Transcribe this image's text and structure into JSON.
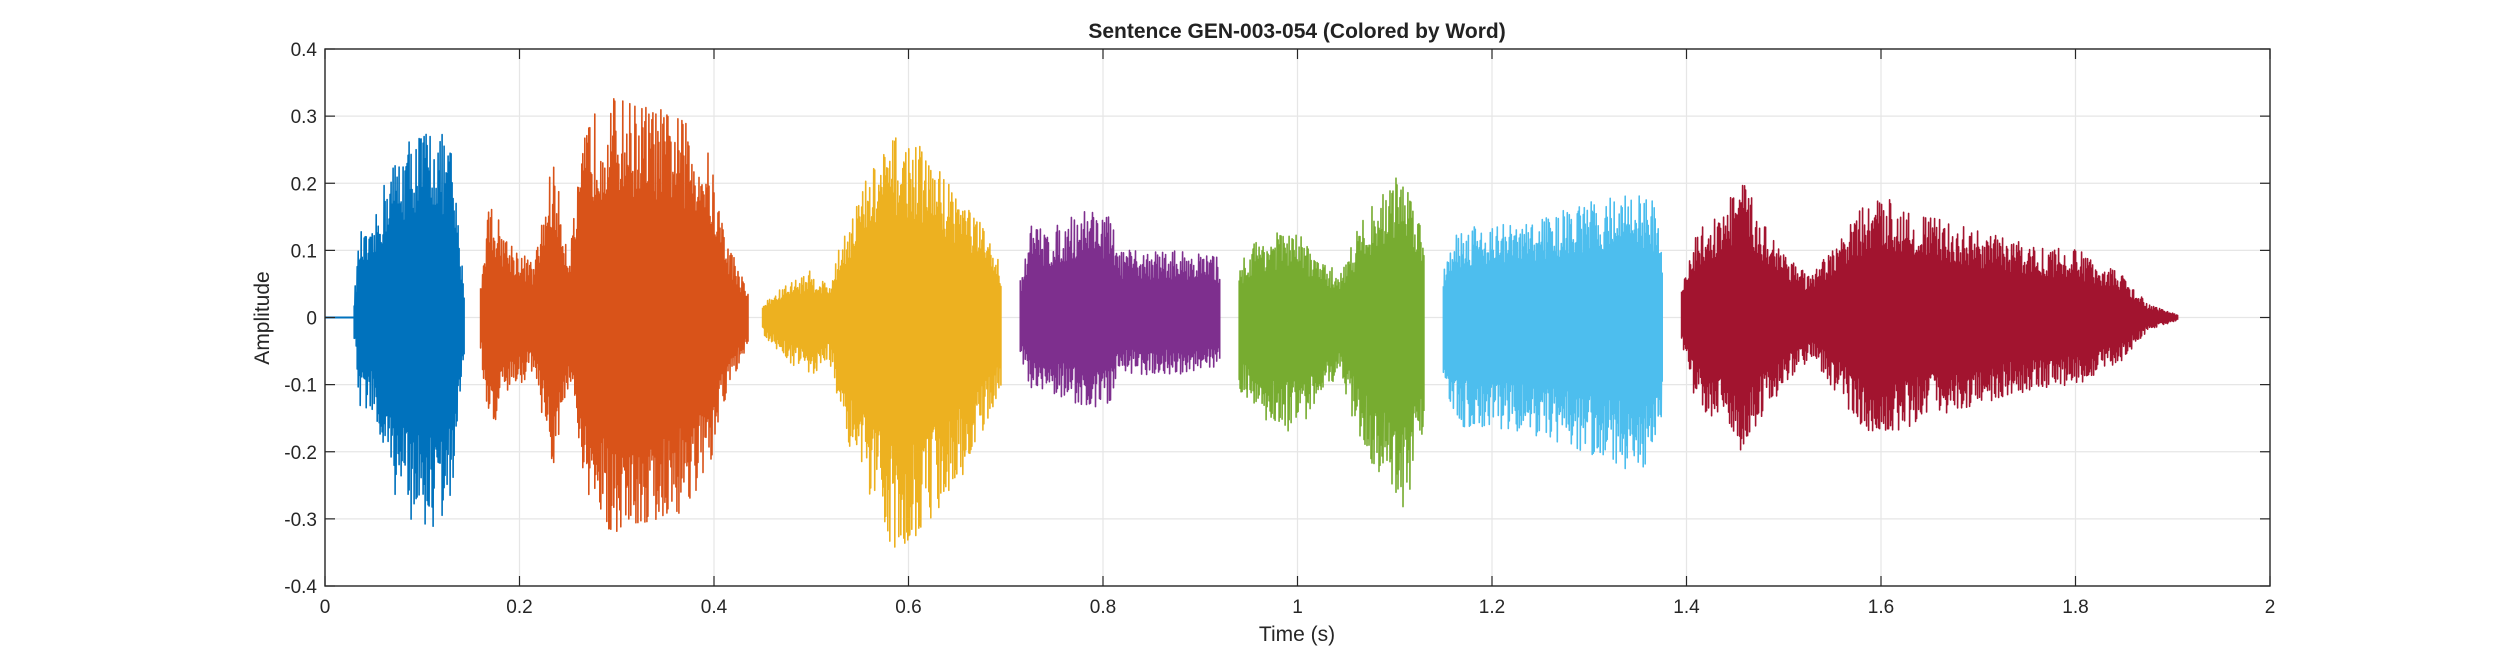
{
  "chart_data": {
    "type": "line",
    "title": "Sentence GEN-003-054 (Colored by Word)",
    "xlabel": "Time (s)",
    "ylabel": "Amplitude",
    "xlim": [
      0,
      2
    ],
    "ylim": [
      -0.4,
      0.4
    ],
    "grid": true,
    "x_ticks": [
      0,
      0.2,
      0.4,
      0.6,
      0.8,
      1,
      1.2,
      1.4,
      1.6,
      1.8,
      2
    ],
    "x_tick_labels": [
      "0",
      "0.2",
      "0.4",
      "0.6",
      "0.8",
      "1",
      "1.2",
      "1.4",
      "1.6",
      "1.8",
      "2"
    ],
    "y_ticks": [
      -0.4,
      -0.3,
      -0.2,
      -0.1,
      0,
      0.1,
      0.2,
      0.3,
      0.4
    ],
    "y_tick_labels": [
      "-0.4",
      "-0.3",
      "-0.2",
      "-0.1",
      "0",
      "0.1",
      "0.2",
      "0.3",
      "0.4"
    ],
    "lead_in": {
      "start": 0.0,
      "end": 0.03,
      "color": "#0072BD"
    },
    "series": [
      {
        "color": "#0072BD",
        "start": 0.03,
        "end": 0.143,
        "peak_pos": 0.26,
        "peak_neg": -0.29,
        "envelope": [
          [
            0,
            0.03
          ],
          [
            0.05,
            0.13
          ],
          [
            0.15,
            0.12
          ],
          [
            0.3,
            0.22
          ],
          [
            0.5,
            0.27
          ],
          [
            0.7,
            0.29
          ],
          [
            0.88,
            0.26
          ],
          [
            0.97,
            0.1
          ],
          [
            1,
            0.05
          ]
        ]
      },
      {
        "color": "#D95319",
        "start": 0.16,
        "end": 0.435,
        "peak_pos": 0.345,
        "peak_neg": -0.34,
        "envelope": [
          [
            0,
            0.05
          ],
          [
            0.03,
            0.18
          ],
          [
            0.1,
            0.12
          ],
          [
            0.2,
            0.08
          ],
          [
            0.27,
            0.24
          ],
          [
            0.33,
            0.1
          ],
          [
            0.4,
            0.3
          ],
          [
            0.5,
            0.33
          ],
          [
            0.62,
            0.32
          ],
          [
            0.75,
            0.3
          ],
          [
            0.85,
            0.25
          ],
          [
            0.92,
            0.12
          ],
          [
            1,
            0.04
          ]
        ]
      },
      {
        "color": "#EDB120",
        "start": 0.45,
        "end": 0.695,
        "peak_pos": 0.275,
        "peak_neg": -0.35,
        "envelope": [
          [
            0,
            0.02
          ],
          [
            0.1,
            0.05
          ],
          [
            0.2,
            0.07
          ],
          [
            0.28,
            0.05
          ],
          [
            0.35,
            0.14
          ],
          [
            0.45,
            0.22
          ],
          [
            0.55,
            0.27
          ],
          [
            0.65,
            0.26
          ],
          [
            0.75,
            0.22
          ],
          [
            0.85,
            0.18
          ],
          [
            0.95,
            0.12
          ],
          [
            1,
            0.08
          ]
        ]
      },
      {
        "color": "#7E2F8E",
        "start": 0.715,
        "end": 0.92,
        "peak_pos": 0.2,
        "peak_neg": -0.17,
        "envelope": [
          [
            0,
            0.06
          ],
          [
            0.05,
            0.14
          ],
          [
            0.15,
            0.13
          ],
          [
            0.25,
            0.15
          ],
          [
            0.35,
            0.17
          ],
          [
            0.45,
            0.15
          ],
          [
            0.5,
            0.1
          ],
          [
            0.65,
            0.1
          ],
          [
            0.85,
            0.1
          ],
          [
            1,
            0.09
          ]
        ]
      },
      {
        "color": "#77AC30",
        "start": 0.94,
        "end": 1.13,
        "peak_pos": 0.19,
        "peak_neg": -0.25,
        "envelope": [
          [
            0,
            0.08
          ],
          [
            0.1,
            0.12
          ],
          [
            0.25,
            0.13
          ],
          [
            0.35,
            0.12
          ],
          [
            0.45,
            0.08
          ],
          [
            0.55,
            0.07
          ],
          [
            0.65,
            0.14
          ],
          [
            0.78,
            0.19
          ],
          [
            0.88,
            0.22
          ],
          [
            0.95,
            0.18
          ],
          [
            1,
            0.12
          ]
        ]
      },
      {
        "color": "#4DBEEE",
        "start": 1.15,
        "end": 1.375,
        "peak_pos": 0.19,
        "peak_neg": -0.23,
        "envelope": [
          [
            0,
            0.08
          ],
          [
            0.05,
            0.13
          ],
          [
            0.15,
            0.14
          ],
          [
            0.35,
            0.14
          ],
          [
            0.55,
            0.16
          ],
          [
            0.75,
            0.18
          ],
          [
            0.88,
            0.19
          ],
          [
            0.95,
            0.18
          ],
          [
            1,
            0.12
          ]
        ]
      },
      {
        "color": "#A2142F",
        "start": 1.395,
        "end": 1.905,
        "peak_pos": 0.23,
        "peak_neg": -0.23,
        "envelope": [
          [
            0,
            0.04
          ],
          [
            0.03,
            0.13
          ],
          [
            0.08,
            0.16
          ],
          [
            0.12,
            0.21
          ],
          [
            0.16,
            0.15
          ],
          [
            0.2,
            0.11
          ],
          [
            0.26,
            0.06
          ],
          [
            0.3,
            0.1
          ],
          [
            0.37,
            0.17
          ],
          [
            0.42,
            0.18
          ],
          [
            0.5,
            0.15
          ],
          [
            0.6,
            0.13
          ],
          [
            0.7,
            0.11
          ],
          [
            0.8,
            0.1
          ],
          [
            0.88,
            0.07
          ],
          [
            0.94,
            0.02
          ],
          [
            1,
            0.004
          ]
        ]
      }
    ]
  }
}
